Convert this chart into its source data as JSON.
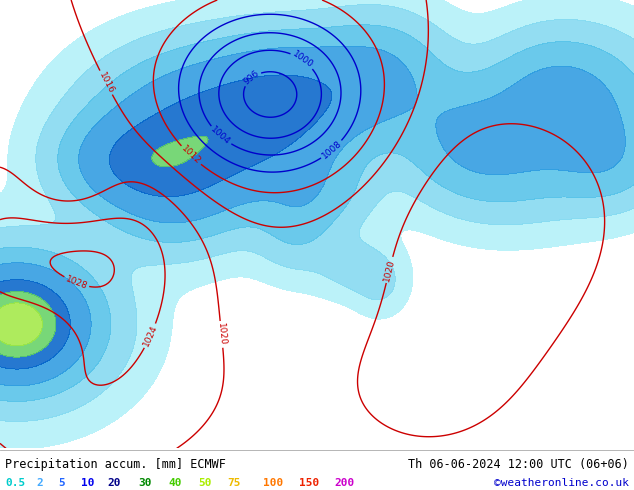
{
  "title_left": "Precipitation accum. [mm] ECMWF",
  "title_right": "Th 06-06-2024 12:00 UTC (06+06)",
  "credit": "©weatheronline.co.uk",
  "legend_values": [
    "0.5",
    "2",
    "5",
    "10",
    "20",
    "30",
    "40",
    "50",
    "75",
    "100",
    "150",
    "200"
  ],
  "legend_label_colors": [
    "#00cccc",
    "#44aaff",
    "#2266ff",
    "#0000ee",
    "#000088",
    "#008800",
    "#44cc00",
    "#aaee00",
    "#eebb00",
    "#ff7700",
    "#ee2200",
    "#cc00cc"
  ],
  "bg_color": "#ffffff",
  "land_color": "#c8c8c8",
  "ocean_color": "#d8d8d8",
  "green_land_color": "#c8e8a0",
  "contour_blue_color": "#0000cc",
  "contour_red_color": "#cc0000",
  "coast_color": "#888888",
  "figsize": [
    6.34,
    4.9
  ],
  "dpi": 100,
  "font_size_title": 8.5,
  "font_size_legend": 8,
  "font_size_credit": 8,
  "extent": [
    -30,
    45,
    25,
    72
  ],
  "prec_levels": [
    0.5,
    2,
    5,
    10,
    20,
    30,
    40,
    50,
    75,
    100,
    150,
    200
  ],
  "prec_colors": [
    "#b0f0f8",
    "#80d8f0",
    "#50c0e8",
    "#2898e0",
    "#0060c8",
    "#60d060",
    "#a0e840",
    "#d8f000",
    "#f8d800",
    "#f8a000",
    "#f84800",
    "#f800f8"
  ],
  "pressure_levels": [
    996,
    1000,
    1004,
    1008,
    1012,
    1016,
    1020,
    1024,
    1028
  ],
  "pressure_levels_blue": [
    996,
    1000,
    1004,
    1008
  ],
  "pressure_levels_red": [
    1012,
    1016,
    1020,
    1024,
    1028
  ]
}
